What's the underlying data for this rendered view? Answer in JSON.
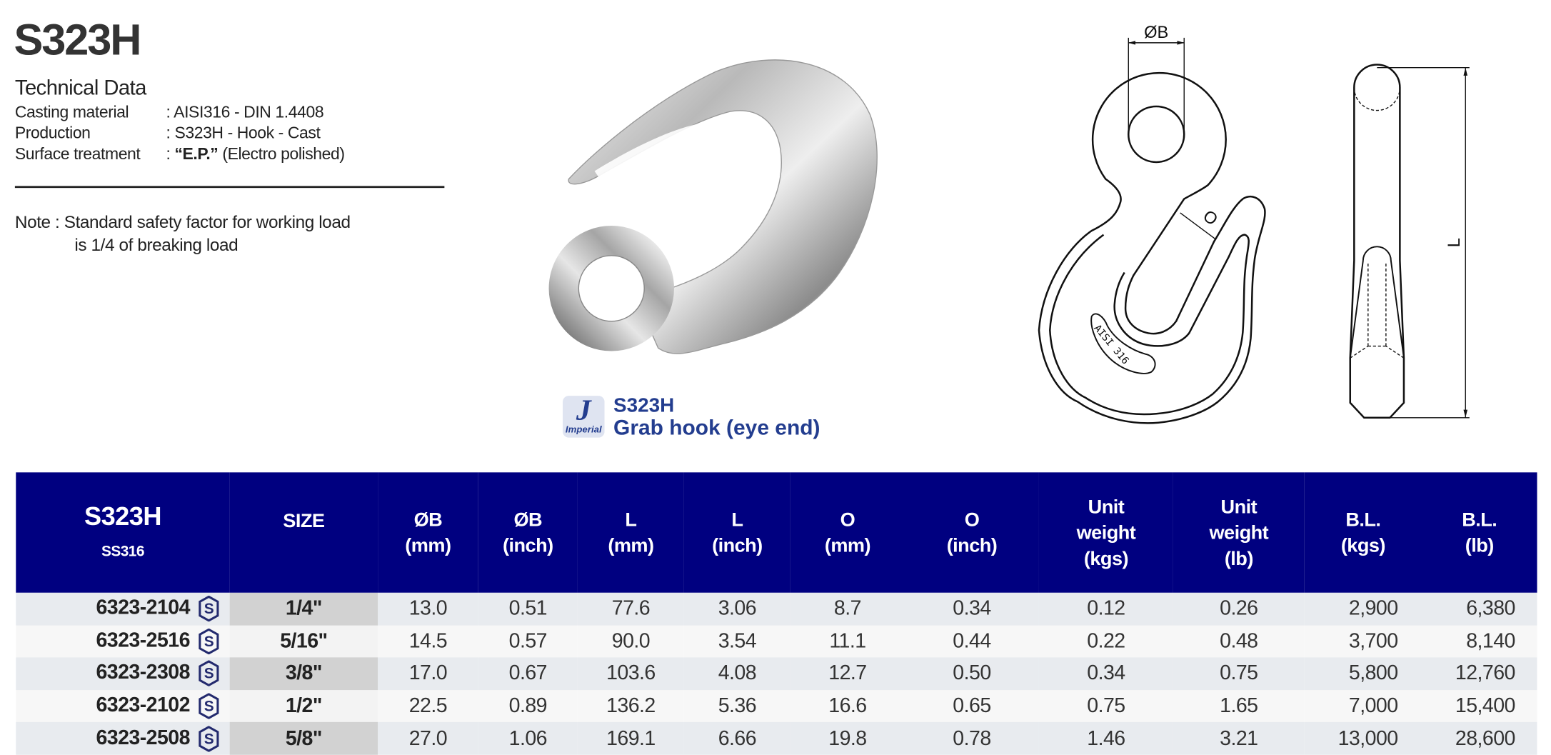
{
  "header": {
    "title": "S323H",
    "technical_data_heading": "Technical Data",
    "specs": [
      {
        "label": "Casting material",
        "value": ": AISI316 - DIN 1.4408"
      },
      {
        "label": "Production",
        "value": ": S323H - Hook - Cast"
      },
      {
        "label": "Surface treatment",
        "value_prefix": ": ",
        "value_bold": "“E.P.”",
        "value_rest": " (Electro polished)"
      }
    ],
    "note_line1": "Note : Standard safety factor for working load",
    "note_line2": "is 1/4 of breaking load"
  },
  "caption": {
    "logo_text": "Imperial",
    "logo_letter": "J",
    "code": "S323H",
    "name": "Grab hook (eye end)"
  },
  "drawing": {
    "dim_b": "ØB",
    "dim_o": "O",
    "dim_l": "L",
    "engraving": "AISI 316"
  },
  "colors": {
    "header_bg": "#000080",
    "caption_blue": "#233d8f",
    "row_odd": "#e8ebef",
    "row_even": "#f7f7f7"
  },
  "table": {
    "model": "S323H",
    "material": "SS316",
    "columns": [
      {
        "l1": "SIZE"
      },
      {
        "l1": "ØB",
        "l2": "(mm)"
      },
      {
        "l1": "ØB",
        "l2": "(inch)"
      },
      {
        "l1": "L",
        "l2": "(mm)"
      },
      {
        "l1": "L",
        "l2": "(inch)"
      },
      {
        "l1": "O",
        "l2": "(mm)"
      },
      {
        "l1": "O",
        "l2": "(inch)"
      },
      {
        "l1": "Unit",
        "l2": "weight",
        "l3": "(kgs)"
      },
      {
        "l1": "Unit",
        "l2": "weight",
        "l3": "(lb)"
      },
      {
        "l1": "B.L.",
        "l2": "(kgs)"
      },
      {
        "l1": "B.L.",
        "l2": "(lb)"
      }
    ],
    "row_icon": "stainless-s-hexagon-icon",
    "rows": [
      [
        "6323-2104",
        "1/4\"",
        "13.0",
        "0.51",
        "77.6",
        "3.06",
        "8.7",
        "0.34",
        "0.12",
        "0.26",
        "2,900",
        "6,380"
      ],
      [
        "6323-2516",
        "5/16\"",
        "14.5",
        "0.57",
        "90.0",
        "3.54",
        "11.1",
        "0.44",
        "0.22",
        "0.48",
        "3,700",
        "8,140"
      ],
      [
        "6323-2308",
        "3/8\"",
        "17.0",
        "0.67",
        "103.6",
        "4.08",
        "12.7",
        "0.50",
        "0.34",
        "0.75",
        "5,800",
        "12,760"
      ],
      [
        "6323-2102",
        "1/2\"",
        "22.5",
        "0.89",
        "136.2",
        "5.36",
        "16.6",
        "0.65",
        "0.75",
        "1.65",
        "7,000",
        "15,400"
      ],
      [
        "6323-2508",
        "5/8\"",
        "27.0",
        "1.06",
        "169.1",
        "6.66",
        "19.8",
        "0.78",
        "1.46",
        "3.21",
        "13,000",
        "28,600"
      ]
    ]
  }
}
